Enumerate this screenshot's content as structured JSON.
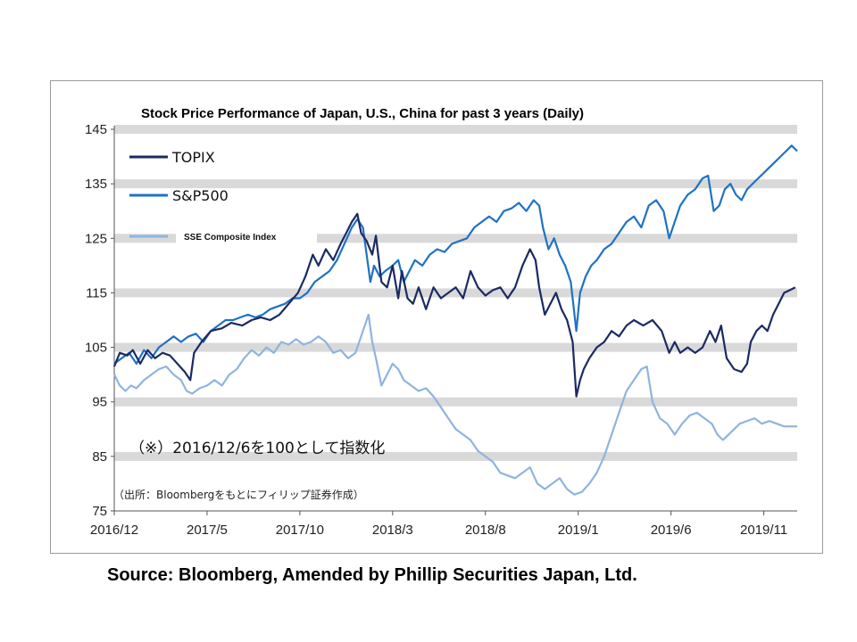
{
  "chart_data": {
    "type": "line",
    "title": "Stock Price Performance of Japan, U.S., China for past 3 years (Daily)",
    "xlabel": "",
    "ylabel": "",
    "ylim": [
      75,
      145
    ],
    "yticks": [
      75,
      85,
      95,
      105,
      115,
      125,
      135,
      145
    ],
    "x_ticks": [
      {
        "label": "2016/12",
        "t": 0
      },
      {
        "label": "2017/5",
        "t": 5
      },
      {
        "label": "2017/10",
        "t": 10
      },
      {
        "label": "2018/3",
        "t": 15
      },
      {
        "label": "2018/8",
        "t": 20
      },
      {
        "label": "2019/1",
        "t": 25
      },
      {
        "label": "2019/6",
        "t": 30
      },
      {
        "label": "2019/11",
        "t": 35
      }
    ],
    "xlim": [
      0,
      36.8
    ],
    "grid": "horizontal bands",
    "legend_position": "top-left",
    "note": "（※）2016/12/6を100として指数化",
    "source_note": "（出所：Bloombergをもとにフィリップ証券作成）",
    "series": [
      {
        "name": "TOPIX",
        "color": "#1b2a63",
        "points": [
          [
            0,
            101.5
          ],
          [
            0.3,
            104
          ],
          [
            0.7,
            103.5
          ],
          [
            1,
            104.5
          ],
          [
            1.4,
            102
          ],
          [
            1.8,
            104.5
          ],
          [
            2.2,
            103
          ],
          [
            2.6,
            104
          ],
          [
            3,
            103.5
          ],
          [
            3.4,
            102
          ],
          [
            3.8,
            100.5
          ],
          [
            4.1,
            99
          ],
          [
            4.3,
            104
          ],
          [
            4.7,
            106
          ],
          [
            5.2,
            108
          ],
          [
            5.8,
            108.5
          ],
          [
            6.3,
            109.5
          ],
          [
            6.9,
            109
          ],
          [
            7.4,
            110
          ],
          [
            7.9,
            110.5
          ],
          [
            8.4,
            110
          ],
          [
            8.9,
            111
          ],
          [
            9.4,
            113
          ],
          [
            9.9,
            115
          ],
          [
            10.3,
            118
          ],
          [
            10.7,
            122
          ],
          [
            11,
            120
          ],
          [
            11.4,
            123
          ],
          [
            11.8,
            121
          ],
          [
            12.2,
            124
          ],
          [
            12.5,
            126
          ],
          [
            12.8,
            128
          ],
          [
            13.1,
            129.5
          ],
          [
            13.3,
            126
          ],
          [
            13.6,
            124.5
          ],
          [
            13.9,
            122
          ],
          [
            14.1,
            125.5
          ],
          [
            14.4,
            117
          ],
          [
            14.7,
            116
          ],
          [
            15,
            120
          ],
          [
            15.3,
            114
          ],
          [
            15.5,
            119
          ],
          [
            15.8,
            114
          ],
          [
            16.1,
            113
          ],
          [
            16.4,
            116
          ],
          [
            16.8,
            112
          ],
          [
            17.2,
            116
          ],
          [
            17.6,
            114
          ],
          [
            18,
            115
          ],
          [
            18.4,
            116
          ],
          [
            18.8,
            114
          ],
          [
            19.2,
            119
          ],
          [
            19.6,
            116
          ],
          [
            20,
            114.5
          ],
          [
            20.4,
            115.5
          ],
          [
            20.8,
            116
          ],
          [
            21.2,
            114
          ],
          [
            21.6,
            116
          ],
          [
            22,
            120
          ],
          [
            22.4,
            123
          ],
          [
            22.7,
            121
          ],
          [
            22.9,
            116
          ],
          [
            23.2,
            111
          ],
          [
            23.5,
            113
          ],
          [
            23.8,
            115
          ],
          [
            24.1,
            112
          ],
          [
            24.4,
            110
          ],
          [
            24.7,
            106
          ],
          [
            24.9,
            96
          ],
          [
            25.1,
            99
          ],
          [
            25.3,
            101
          ],
          [
            25.6,
            103
          ],
          [
            26,
            105
          ],
          [
            26.4,
            106
          ],
          [
            26.8,
            108
          ],
          [
            27.2,
            107
          ],
          [
            27.6,
            109
          ],
          [
            28,
            110
          ],
          [
            28.5,
            109
          ],
          [
            29,
            110
          ],
          [
            29.5,
            108
          ],
          [
            29.9,
            104
          ],
          [
            30.2,
            106
          ],
          [
            30.5,
            104
          ],
          [
            30.9,
            105
          ],
          [
            31.3,
            104
          ],
          [
            31.7,
            105
          ],
          [
            32.1,
            108
          ],
          [
            32.4,
            106
          ],
          [
            32.7,
            109
          ],
          [
            33,
            103
          ],
          [
            33.4,
            101
          ],
          [
            33.8,
            100.5
          ],
          [
            34.1,
            102
          ],
          [
            34.3,
            106
          ],
          [
            34.6,
            108
          ],
          [
            34.9,
            109
          ],
          [
            35.2,
            108
          ],
          [
            35.5,
            111
          ],
          [
            35.8,
            113
          ],
          [
            36.1,
            115
          ],
          [
            36.4,
            115.5
          ],
          [
            36.7,
            116
          ]
        ]
      },
      {
        "name": "S&P500",
        "color": "#1f72c4",
        "points": [
          [
            0,
            102
          ],
          [
            0.4,
            103
          ],
          [
            0.8,
            104
          ],
          [
            1.2,
            102
          ],
          [
            1.6,
            104.5
          ],
          [
            2,
            103
          ],
          [
            2.4,
            105
          ],
          [
            2.8,
            106
          ],
          [
            3.2,
            107
          ],
          [
            3.6,
            106
          ],
          [
            4,
            107
          ],
          [
            4.4,
            107.5
          ],
          [
            4.8,
            106
          ],
          [
            5.2,
            108
          ],
          [
            5.6,
            109
          ],
          [
            6,
            110
          ],
          [
            6.4,
            110
          ],
          [
            6.8,
            110.5
          ],
          [
            7.2,
            111
          ],
          [
            7.6,
            110.5
          ],
          [
            8,
            111
          ],
          [
            8.4,
            112
          ],
          [
            8.8,
            112.5
          ],
          [
            9.2,
            113
          ],
          [
            9.6,
            114
          ],
          [
            10,
            114
          ],
          [
            10.4,
            115
          ],
          [
            10.8,
            117
          ],
          [
            11.2,
            118
          ],
          [
            11.6,
            119
          ],
          [
            12,
            121
          ],
          [
            12.4,
            124
          ],
          [
            12.8,
            127
          ],
          [
            13.1,
            128.5
          ],
          [
            13.4,
            127
          ],
          [
            13.6,
            122
          ],
          [
            13.8,
            117
          ],
          [
            14,
            120
          ],
          [
            14.3,
            118
          ],
          [
            14.6,
            119
          ],
          [
            15,
            120
          ],
          [
            15.3,
            121
          ],
          [
            15.6,
            117
          ],
          [
            15.9,
            119
          ],
          [
            16.2,
            121
          ],
          [
            16.6,
            120
          ],
          [
            17,
            122
          ],
          [
            17.4,
            123
          ],
          [
            17.8,
            122.5
          ],
          [
            18.2,
            124
          ],
          [
            18.6,
            124.5
          ],
          [
            19,
            125
          ],
          [
            19.4,
            127
          ],
          [
            19.8,
            128
          ],
          [
            20.2,
            129
          ],
          [
            20.6,
            128
          ],
          [
            21,
            130
          ],
          [
            21.4,
            130.5
          ],
          [
            21.8,
            131.5
          ],
          [
            22.2,
            130
          ],
          [
            22.6,
            132
          ],
          [
            22.9,
            131
          ],
          [
            23.1,
            127
          ],
          [
            23.4,
            123
          ],
          [
            23.7,
            125
          ],
          [
            24,
            122
          ],
          [
            24.3,
            120
          ],
          [
            24.6,
            117
          ],
          [
            24.9,
            108
          ],
          [
            25.1,
            115
          ],
          [
            25.4,
            118
          ],
          [
            25.7,
            120
          ],
          [
            26,
            121
          ],
          [
            26.4,
            123
          ],
          [
            26.8,
            124
          ],
          [
            27.2,
            126
          ],
          [
            27.6,
            128
          ],
          [
            28,
            129
          ],
          [
            28.4,
            127
          ],
          [
            28.8,
            131
          ],
          [
            29.2,
            132
          ],
          [
            29.6,
            130
          ],
          [
            29.9,
            125
          ],
          [
            30.2,
            128
          ],
          [
            30.5,
            131
          ],
          [
            30.9,
            133
          ],
          [
            31.3,
            134
          ],
          [
            31.7,
            136
          ],
          [
            32,
            136.5
          ],
          [
            32.3,
            130
          ],
          [
            32.6,
            131
          ],
          [
            32.9,
            134
          ],
          [
            33.2,
            135
          ],
          [
            33.5,
            133
          ],
          [
            33.8,
            132
          ],
          [
            34.1,
            134
          ],
          [
            34.4,
            135
          ],
          [
            34.7,
            136
          ],
          [
            35,
            137
          ],
          [
            35.3,
            138
          ],
          [
            35.6,
            139
          ],
          [
            35.9,
            140
          ],
          [
            36.2,
            141
          ],
          [
            36.5,
            142
          ],
          [
            36.8,
            141
          ]
        ]
      },
      {
        "name": "SSE Composite Index",
        "color": "#8fb4de",
        "points": [
          [
            0,
            100
          ],
          [
            0.3,
            98
          ],
          [
            0.6,
            97
          ],
          [
            0.9,
            98
          ],
          [
            1.2,
            97.5
          ],
          [
            1.6,
            99
          ],
          [
            2,
            100
          ],
          [
            2.4,
            101
          ],
          [
            2.8,
            101.5
          ],
          [
            3.2,
            100
          ],
          [
            3.6,
            99
          ],
          [
            3.9,
            97
          ],
          [
            4.2,
            96.5
          ],
          [
            4.6,
            97.5
          ],
          [
            5,
            98
          ],
          [
            5.4,
            99
          ],
          [
            5.8,
            98
          ],
          [
            6.2,
            100
          ],
          [
            6.6,
            101
          ],
          [
            7,
            103
          ],
          [
            7.4,
            104.5
          ],
          [
            7.8,
            103.5
          ],
          [
            8.2,
            105
          ],
          [
            8.6,
            104
          ],
          [
            9,
            106
          ],
          [
            9.4,
            105.5
          ],
          [
            9.8,
            106.5
          ],
          [
            10.2,
            105.5
          ],
          [
            10.6,
            106
          ],
          [
            11,
            107
          ],
          [
            11.4,
            106
          ],
          [
            11.8,
            104
          ],
          [
            12.2,
            104.5
          ],
          [
            12.6,
            103
          ],
          [
            13,
            104
          ],
          [
            13.4,
            108
          ],
          [
            13.7,
            111
          ],
          [
            13.9,
            106
          ],
          [
            14.1,
            103
          ],
          [
            14.4,
            98
          ],
          [
            14.7,
            100
          ],
          [
            15,
            102
          ],
          [
            15.3,
            101
          ],
          [
            15.6,
            99
          ],
          [
            16,
            98
          ],
          [
            16.4,
            97
          ],
          [
            16.8,
            97.5
          ],
          [
            17.2,
            96
          ],
          [
            17.6,
            94
          ],
          [
            18,
            92
          ],
          [
            18.4,
            90
          ],
          [
            18.8,
            89
          ],
          [
            19.2,
            88
          ],
          [
            19.6,
            86
          ],
          [
            20,
            85
          ],
          [
            20.4,
            84
          ],
          [
            20.8,
            82
          ],
          [
            21.2,
            81.5
          ],
          [
            21.6,
            81
          ],
          [
            22,
            82
          ],
          [
            22.4,
            83
          ],
          [
            22.8,
            80
          ],
          [
            23.2,
            79
          ],
          [
            23.6,
            80
          ],
          [
            24,
            81
          ],
          [
            24.4,
            79
          ],
          [
            24.8,
            78
          ],
          [
            25.2,
            78.5
          ],
          [
            25.6,
            80
          ],
          [
            26,
            82
          ],
          [
            26.4,
            85
          ],
          [
            26.8,
            89
          ],
          [
            27.2,
            93
          ],
          [
            27.6,
            97
          ],
          [
            28,
            99
          ],
          [
            28.4,
            101
          ],
          [
            28.7,
            101.5
          ],
          [
            29,
            95
          ],
          [
            29.4,
            92
          ],
          [
            29.8,
            91
          ],
          [
            30.2,
            89
          ],
          [
            30.6,
            91
          ],
          [
            31,
            92.5
          ],
          [
            31.4,
            93
          ],
          [
            31.8,
            92
          ],
          [
            32.2,
            91
          ],
          [
            32.5,
            89
          ],
          [
            32.8,
            88
          ],
          [
            33.1,
            89
          ],
          [
            33.4,
            90
          ],
          [
            33.7,
            91
          ],
          [
            34.1,
            91.5
          ],
          [
            34.5,
            92
          ],
          [
            34.9,
            91
          ],
          [
            35.3,
            91.5
          ],
          [
            35.7,
            91
          ],
          [
            36.1,
            90.5
          ],
          [
            36.5,
            90.5
          ],
          [
            36.8,
            90.5
          ]
        ]
      }
    ]
  },
  "source_line": "Source: Bloomberg, Amended by Phillip Securities Japan, Ltd."
}
